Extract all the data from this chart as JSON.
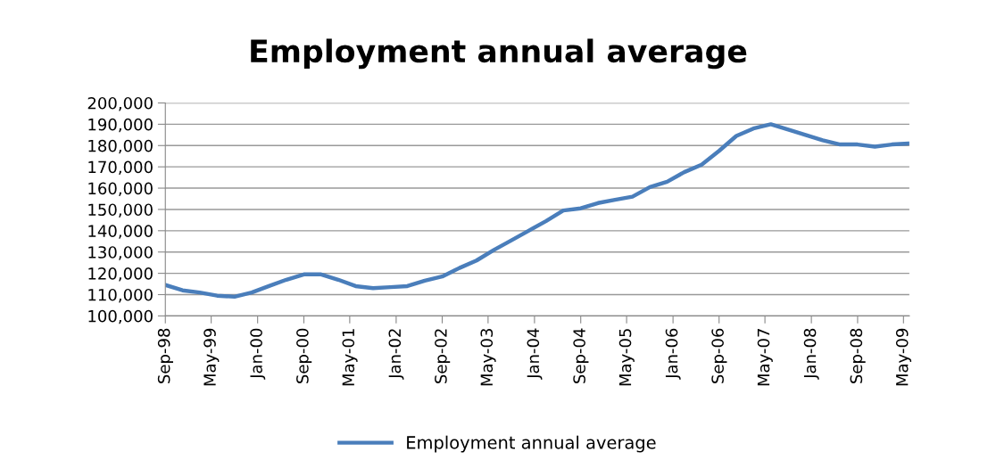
{
  "chart_data": {
    "type": "line",
    "title": "Employment annual average",
    "x": [
      "1998-09",
      "1998-12",
      "1999-03",
      "1999-06",
      "1999-09",
      "1999-12",
      "2000-03",
      "2000-06",
      "2000-09",
      "2000-12",
      "2001-03",
      "2001-06",
      "2001-09",
      "2001-12",
      "2002-03",
      "2002-06",
      "2002-09",
      "2002-12",
      "2003-03",
      "2003-06",
      "2003-09",
      "2003-12",
      "2004-03",
      "2004-06",
      "2004-09",
      "2004-12",
      "2005-03",
      "2005-06",
      "2005-09",
      "2005-12",
      "2006-03",
      "2006-06",
      "2006-09",
      "2006-12",
      "2007-03",
      "2007-06",
      "2007-09",
      "2007-12",
      "2008-03",
      "2008-06",
      "2008-09",
      "2008-12",
      "2009-03",
      "2009-06"
    ],
    "series": [
      {
        "name": "Employment annual average",
        "color": "#4a7ebb",
        "values": [
          114500,
          112000,
          111000,
          109500,
          109000,
          111000,
          114000,
          117000,
          119500,
          119500,
          117000,
          114000,
          113000,
          113500,
          114000,
          116500,
          118500,
          122500,
          126000,
          131000,
          135500,
          140000,
          144500,
          149500,
          150500,
          153000,
          154500,
          156000,
          160500,
          163000,
          167500,
          171000,
          177500,
          184500,
          188000,
          190000,
          187500,
          185000,
          182500,
          180500,
          180500,
          179500,
          180500,
          181000
        ]
      }
    ],
    "xlim": [
      "1998-09",
      "2009-06"
    ],
    "xticks": [
      {
        "value": "1998-09",
        "label": "Sep-98"
      },
      {
        "value": "1999-05",
        "label": "May-99"
      },
      {
        "value": "2000-01",
        "label": "Jan-00"
      },
      {
        "value": "2000-09",
        "label": "Sep-00"
      },
      {
        "value": "2001-05",
        "label": "May-01"
      },
      {
        "value": "2002-01",
        "label": "Jan-02"
      },
      {
        "value": "2002-09",
        "label": "Sep-02"
      },
      {
        "value": "2003-05",
        "label": "May-03"
      },
      {
        "value": "2004-01",
        "label": "Jan-04"
      },
      {
        "value": "2004-09",
        "label": "Sep-04"
      },
      {
        "value": "2005-05",
        "label": "May-05"
      },
      {
        "value": "2006-01",
        "label": "Jan-06"
      },
      {
        "value": "2006-09",
        "label": "Sep-06"
      },
      {
        "value": "2007-05",
        "label": "May-07"
      },
      {
        "value": "2008-01",
        "label": "Jan-08"
      },
      {
        "value": "2008-09",
        "label": "Sep-08"
      },
      {
        "value": "2009-05",
        "label": "May-09"
      }
    ],
    "ylim": [
      100000,
      200000
    ],
    "yticks": [
      {
        "value": 100000,
        "label": "100,000"
      },
      {
        "value": 110000,
        "label": "110,000"
      },
      {
        "value": 120000,
        "label": "120,000"
      },
      {
        "value": 130000,
        "label": "130,000"
      },
      {
        "value": 140000,
        "label": "140,000"
      },
      {
        "value": 150000,
        "label": "150,000"
      },
      {
        "value": 160000,
        "label": "160,000"
      },
      {
        "value": 170000,
        "label": "170,000"
      },
      {
        "value": 180000,
        "label": "180,000"
      },
      {
        "value": 190000,
        "label": "190,000"
      },
      {
        "value": 200000,
        "label": "200,000"
      }
    ],
    "grid": "y",
    "legend": "bottom",
    "marker": "none",
    "line_style": "solid"
  }
}
